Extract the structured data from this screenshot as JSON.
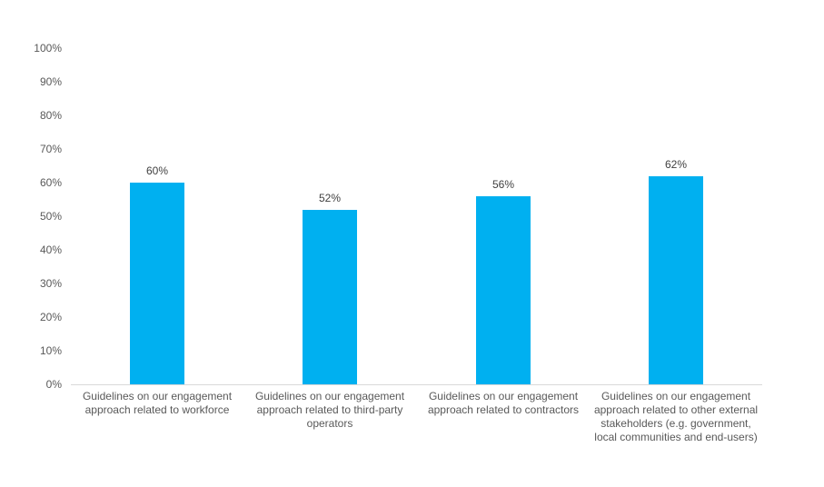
{
  "chart_data": {
    "type": "bar",
    "title": "",
    "xlabel": "",
    "ylabel": "",
    "categories": [
      "Guidelines on our engagement approach related to workforce",
      "Guidelines on our engagement approach related to third-party operators",
      "Guidelines on our engagement approach related to contractors",
      "Guidelines on our engagement approach related to other external stakeholders (e.g. government, local communities and end-users)"
    ],
    "values": [
      60,
      52,
      56,
      62
    ],
    "data_labels": [
      "60%",
      "52%",
      "56%",
      "62%"
    ],
    "ylim": [
      0,
      100
    ],
    "ytick_values": [
      0,
      10,
      20,
      30,
      40,
      50,
      60,
      70,
      80,
      90,
      100
    ],
    "ytick_labels": [
      "0%",
      "10%",
      "20%",
      "30%",
      "40%",
      "50%",
      "60%",
      "70%",
      "80%",
      "90%",
      "100%"
    ],
    "grid": false,
    "legend": "none",
    "bar_color": "#00B0F0",
    "axis_line_color": "#D9D9D9",
    "tick_label_color": "#595959",
    "data_label_color": "#404040"
  }
}
